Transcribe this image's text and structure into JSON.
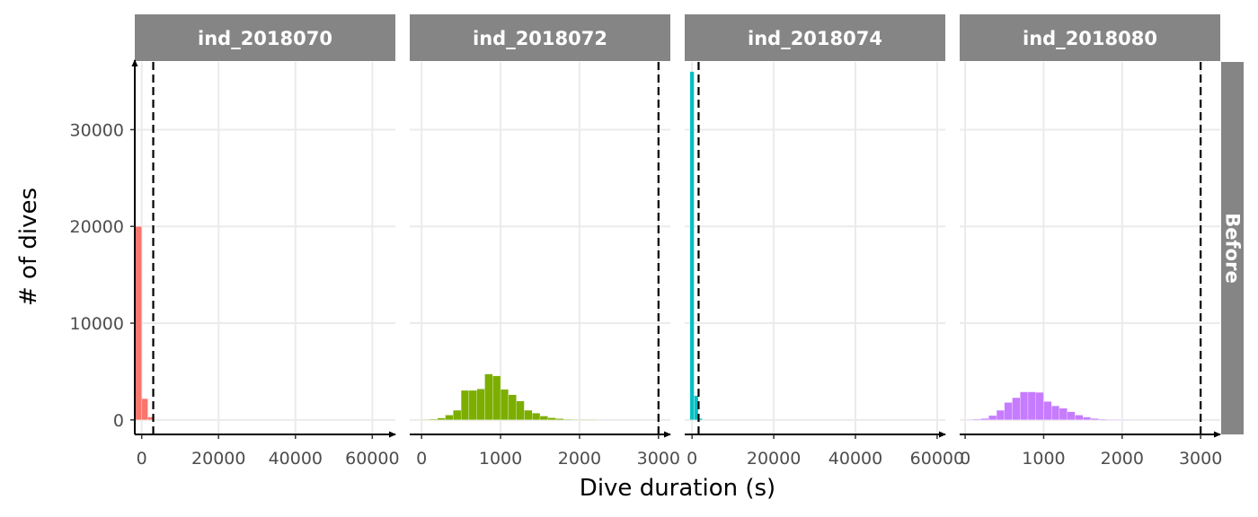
{
  "chart_data": {
    "type": "bar",
    "subtype": "faceted-histogram",
    "xlabel": "Dive duration (s)",
    "ylabel": "# of dives",
    "row_strip": "Before",
    "grid": true,
    "legend": "none",
    "ylim": [
      -1500,
      37000
    ],
    "y_ticks": [
      0,
      10000,
      20000,
      30000
    ],
    "y_tick_labels": [
      "0",
      "10000",
      "20000",
      "30000"
    ],
    "facets": [
      {
        "name": "ind_2018070",
        "color": "#F8766D",
        "xlim": [
          -1800,
          66000
        ],
        "x_ticks": [
          0,
          20000,
          40000,
          60000
        ],
        "x_tick_labels": [
          "0",
          "20000",
          "40000",
          "60000"
        ],
        "vline": 3000,
        "binwidth": 1600,
        "bins": [
          {
            "x": -800,
            "count": 20000
          },
          {
            "x": 800,
            "count": 2200
          },
          {
            "x": 2400,
            "count": 300
          }
        ]
      },
      {
        "name": "ind_2018072",
        "color": "#7CAE00",
        "xlim": [
          -150,
          3150
        ],
        "x_ticks": [
          0,
          1000,
          2000,
          3000
        ],
        "x_tick_labels": [
          "0",
          "1000",
          "2000",
          "3000"
        ],
        "vline": 3000,
        "binwidth": 100,
        "bins": [
          {
            "x": 50,
            "count": 20
          },
          {
            "x": 150,
            "count": 80
          },
          {
            "x": 250,
            "count": 200
          },
          {
            "x": 350,
            "count": 500
          },
          {
            "x": 450,
            "count": 1000
          },
          {
            "x": 550,
            "count": 3050
          },
          {
            "x": 650,
            "count": 3050
          },
          {
            "x": 750,
            "count": 3200
          },
          {
            "x": 850,
            "count": 4750
          },
          {
            "x": 950,
            "count": 4550
          },
          {
            "x": 1050,
            "count": 3150
          },
          {
            "x": 1150,
            "count": 2600
          },
          {
            "x": 1250,
            "count": 1950
          },
          {
            "x": 1350,
            "count": 1000
          },
          {
            "x": 1450,
            "count": 700
          },
          {
            "x": 1550,
            "count": 400
          },
          {
            "x": 1650,
            "count": 220
          },
          {
            "x": 1750,
            "count": 130
          },
          {
            "x": 1850,
            "count": 70
          },
          {
            "x": 1950,
            "count": 40
          },
          {
            "x": 2050,
            "count": 20
          },
          {
            "x": 2150,
            "count": 10
          }
        ]
      },
      {
        "name": "ind_2018074",
        "color": "#00BFC4",
        "xlim": [
          -1800,
          62000
        ],
        "x_ticks": [
          0,
          20000,
          40000,
          60000
        ],
        "x_tick_labels": [
          "0",
          "20000",
          "40000",
          "60000"
        ],
        "vline": 1600,
        "binwidth": 1000,
        "bins": [
          {
            "x": 0,
            "count": 36000
          },
          {
            "x": 1000,
            "count": 2500
          },
          {
            "x": 2000,
            "count": 150
          }
        ]
      },
      {
        "name": "ind_2018080",
        "color": "#C77CFF",
        "xlim": [
          -70,
          3250
        ],
        "x_ticks": [
          0,
          1000,
          2000,
          3000
        ],
        "x_tick_labels": [
          "0",
          "1000",
          "2000",
          "3000"
        ],
        "vline": 3000,
        "binwidth": 100,
        "bins": [
          {
            "x": 50,
            "count": 30
          },
          {
            "x": 150,
            "count": 80
          },
          {
            "x": 250,
            "count": 150
          },
          {
            "x": 350,
            "count": 450
          },
          {
            "x": 450,
            "count": 1000
          },
          {
            "x": 550,
            "count": 1800
          },
          {
            "x": 650,
            "count": 2300
          },
          {
            "x": 750,
            "count": 2900
          },
          {
            "x": 850,
            "count": 2900
          },
          {
            "x": 950,
            "count": 2850
          },
          {
            "x": 1050,
            "count": 1900
          },
          {
            "x": 1150,
            "count": 1450
          },
          {
            "x": 1250,
            "count": 1200
          },
          {
            "x": 1350,
            "count": 850
          },
          {
            "x": 1450,
            "count": 500
          },
          {
            "x": 1550,
            "count": 300
          },
          {
            "x": 1650,
            "count": 150
          },
          {
            "x": 1750,
            "count": 80
          },
          {
            "x": 1850,
            "count": 40
          },
          {
            "x": 1950,
            "count": 20
          },
          {
            "x": 2050,
            "count": 10
          }
        ]
      }
    ]
  }
}
